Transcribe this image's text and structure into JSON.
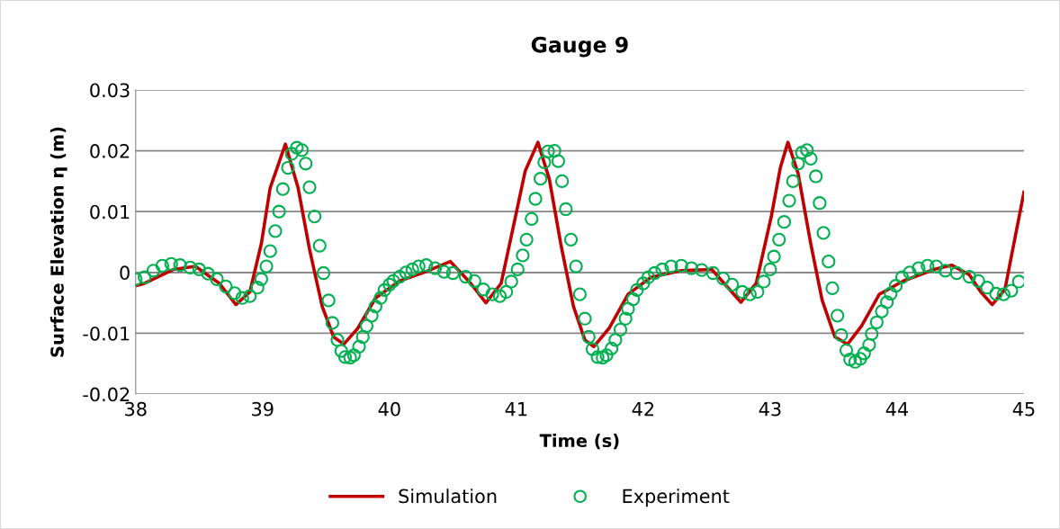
{
  "chart_data": {
    "type": "line",
    "title": "Gauge 9",
    "xlabel": "Time (s)",
    "ylabel": "Surface Elevation η (m)",
    "xlim": [
      38,
      45
    ],
    "xticks": [
      38,
      39,
      40,
      41,
      42,
      43,
      44,
      45
    ],
    "ylim": [
      -0.02,
      0.03
    ],
    "yticks": [
      -0.02,
      -0.01,
      0,
      0.01,
      0.02,
      0.03
    ],
    "grid": "y",
    "legend": "bottom",
    "series": [
      {
        "name": "Simulation",
        "color": "#c00000",
        "marker": "none",
        "line_style": "solid",
        "x": [
          38.0,
          38.07,
          38.3,
          38.47,
          38.66,
          38.79,
          38.9,
          38.99,
          39.06,
          39.18,
          39.28,
          39.37,
          39.47,
          39.56,
          39.64,
          39.75,
          39.89,
          40.08,
          40.27,
          40.48,
          40.64,
          40.76,
          40.88,
          40.98,
          41.07,
          41.17,
          41.26,
          41.35,
          41.45,
          41.54,
          41.61,
          41.73,
          41.88,
          42.06,
          42.3,
          42.54,
          42.68,
          42.77,
          42.89,
          43.01,
          43.08,
          43.14,
          43.22,
          43.32,
          43.41,
          43.51,
          43.61,
          43.72,
          43.86,
          44.05,
          44.29,
          44.43,
          44.57,
          44.66,
          44.75,
          44.85,
          44.92,
          45.0
        ],
        "values": [
          -0.0022,
          -0.0018,
          0.0005,
          0.001,
          -0.0018,
          -0.0053,
          -0.0032,
          0.0047,
          0.0139,
          0.0211,
          0.0139,
          0.0038,
          -0.0056,
          -0.0106,
          -0.0118,
          -0.0092,
          -0.0042,
          -0.0014,
          0.0,
          0.0018,
          -0.0018,
          -0.005,
          -0.0018,
          0.0079,
          0.0167,
          0.0214,
          0.0153,
          0.0047,
          -0.0056,
          -0.0111,
          -0.0122,
          -0.0092,
          -0.0036,
          -0.0008,
          0.0003,
          0.0005,
          -0.0028,
          -0.0049,
          -0.0018,
          0.0093,
          0.0172,
          0.0214,
          0.0163,
          0.0047,
          -0.0046,
          -0.0106,
          -0.0118,
          -0.0088,
          -0.0036,
          -0.0014,
          0.0005,
          0.0012,
          -0.0004,
          -0.0032,
          -0.0053,
          -0.0028,
          0.0047,
          0.0132
        ]
      },
      {
        "name": "Experiment",
        "type": "scatter",
        "color": "#00b050",
        "marker": "circle",
        "x": [
          38.0,
          38.07,
          38.14,
          38.21,
          38.28,
          38.35,
          38.43,
          38.5,
          38.57,
          38.64,
          38.71,
          38.78,
          38.84,
          38.9,
          38.96,
          38.99,
          39.03,
          39.06,
          39.1,
          39.13,
          39.16,
          39.2,
          39.23,
          39.27,
          39.31,
          39.34,
          39.37,
          39.41,
          39.45,
          39.48,
          39.52,
          39.55,
          39.59,
          39.62,
          39.65,
          39.69,
          39.72,
          39.76,
          39.79,
          39.82,
          39.86,
          39.89,
          39.93,
          39.96,
          40.0,
          40.03,
          40.08,
          40.13,
          40.18,
          40.23,
          40.29,
          40.36,
          40.43,
          40.5,
          40.6,
          40.67,
          40.74,
          40.81,
          40.87,
          40.92,
          40.96,
          41.01,
          41.05,
          41.08,
          41.12,
          41.15,
          41.19,
          41.22,
          41.25,
          41.3,
          41.33,
          41.36,
          41.39,
          41.43,
          41.47,
          41.5,
          41.54,
          41.57,
          41.6,
          41.64,
          41.68,
          41.71,
          41.75,
          41.78,
          41.82,
          41.86,
          41.88,
          41.92,
          41.95,
          42.0,
          42.04,
          42.09,
          42.15,
          42.22,
          42.3,
          42.38,
          42.46,
          42.55,
          42.63,
          42.7,
          42.78,
          42.84,
          42.9,
          42.95,
          43.0,
          43.03,
          43.07,
          43.11,
          43.15,
          43.18,
          43.22,
          43.25,
          43.29,
          43.32,
          43.36,
          43.39,
          43.42,
          43.46,
          43.49,
          43.53,
          43.56,
          43.6,
          43.63,
          43.67,
          43.71,
          43.74,
          43.78,
          43.8,
          43.84,
          43.88,
          43.92,
          43.95,
          43.99,
          44.04,
          44.1,
          44.17,
          44.24,
          44.31,
          44.38,
          44.47,
          44.57,
          44.64,
          44.71,
          44.78,
          44.84,
          44.9,
          44.96
        ],
        "values": [
          -0.0011,
          -0.0008,
          0.0003,
          0.0011,
          0.0014,
          0.0012,
          0.0008,
          0.0005,
          -0.0002,
          -0.0011,
          -0.0023,
          -0.0034,
          -0.0042,
          -0.0039,
          -0.0025,
          -0.0011,
          0.001,
          0.0035,
          0.0068,
          0.01,
          0.0137,
          0.0172,
          0.0195,
          0.0205,
          0.0201,
          0.0179,
          0.014,
          0.0092,
          0.0044,
          -0.0001,
          -0.0046,
          -0.0083,
          -0.0111,
          -0.0129,
          -0.0139,
          -0.014,
          -0.0136,
          -0.0122,
          -0.0106,
          -0.0088,
          -0.0071,
          -0.0056,
          -0.0042,
          -0.0029,
          -0.002,
          -0.0014,
          -0.0007,
          0.0,
          0.0005,
          0.001,
          0.0012,
          0.0007,
          0.0001,
          -0.0001,
          -0.0007,
          -0.0014,
          -0.0028,
          -0.0036,
          -0.0039,
          -0.0032,
          -0.0015,
          0.0005,
          0.0028,
          0.0054,
          0.0088,
          0.0121,
          0.0154,
          0.0181,
          0.0199,
          0.02,
          0.0183,
          0.015,
          0.0104,
          0.0054,
          0.001,
          -0.0036,
          -0.0076,
          -0.0106,
          -0.0126,
          -0.0139,
          -0.014,
          -0.0136,
          -0.0125,
          -0.0111,
          -0.0094,
          -0.0076,
          -0.006,
          -0.0044,
          -0.0029,
          -0.0018,
          -0.0008,
          -0.0001,
          0.0005,
          0.001,
          0.0011,
          0.0007,
          0.0004,
          -0.0001,
          -0.001,
          -0.002,
          -0.0032,
          -0.0036,
          -0.0032,
          -0.0015,
          0.0005,
          0.0026,
          0.0054,
          0.0083,
          0.0118,
          0.015,
          0.0179,
          0.0197,
          0.0201,
          0.0187,
          0.0158,
          0.0114,
          0.0065,
          0.0018,
          -0.0026,
          -0.0071,
          -0.0103,
          -0.0128,
          -0.0143,
          -0.0147,
          -0.0142,
          -0.0133,
          -0.0119,
          -0.0101,
          -0.0082,
          -0.0064,
          -0.0049,
          -0.0035,
          -0.0022,
          -0.0008,
          0.0,
          0.0007,
          0.0011,
          0.001,
          0.0003,
          -0.0001,
          -0.0007,
          -0.0014,
          -0.0025,
          -0.0035,
          -0.0036,
          -0.003,
          -0.0015
        ]
      }
    ]
  }
}
